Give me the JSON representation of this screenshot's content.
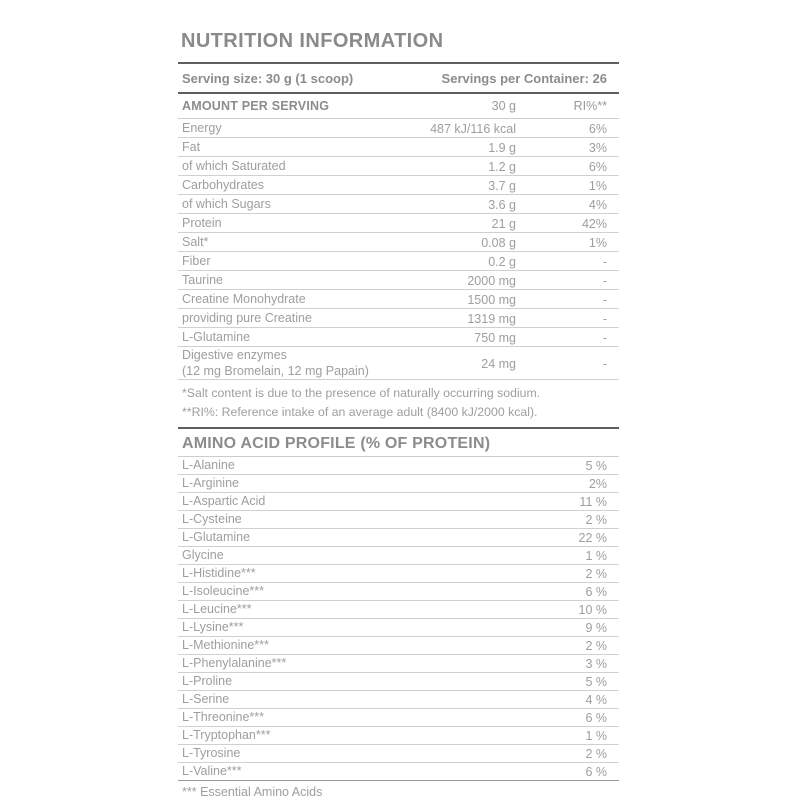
{
  "title": "NUTRITION INFORMATION",
  "serving": {
    "size_label": "Serving size: 30 g (1 scoop)",
    "per_container_label": "Servings per Container: 26"
  },
  "main_table": {
    "header": {
      "name": "AMOUNT PER SERVING",
      "amount": "30 g",
      "ri": "RI%**"
    },
    "rows": [
      {
        "name": "Energy",
        "amount": "487 kJ/116 kcal",
        "ri": "6%"
      },
      {
        "name": "Fat",
        "amount": "1.9 g",
        "ri": "3%"
      },
      {
        "name": "of which Saturated",
        "amount": "1.2 g",
        "ri": "6%"
      },
      {
        "name": "Carbohydrates",
        "amount": "3.7 g",
        "ri": "1%"
      },
      {
        "name": "of which Sugars",
        "amount": "3.6 g",
        "ri": "4%"
      },
      {
        "name": "Protein",
        "amount": "21 g",
        "ri": "42%"
      },
      {
        "name": "Salt*",
        "amount": "0.08 g",
        "ri": "1%"
      },
      {
        "name": "Fiber",
        "amount": "0.2 g",
        "ri": "-"
      },
      {
        "name": "Taurine",
        "amount": "2000 mg",
        "ri": "-"
      },
      {
        "name": "Creatine Monohydrate",
        "amount": "1500 mg",
        "ri": "-"
      },
      {
        "name": "providing pure Creatine",
        "amount": "1319 mg",
        "ri": "-"
      },
      {
        "name": "L-Glutamine",
        "amount": "750 mg",
        "ri": "-"
      },
      {
        "name": "Digestive enzymes",
        "name_line2": "(12 mg Bromelain, 12 mg Papain)",
        "amount": "24 mg",
        "ri": "-"
      }
    ],
    "footnotes": [
      "*Salt content is due to the presence of naturally occurring sodium.",
      "**RI%: Reference intake of an average adult (8400 kJ/2000 kcal)."
    ]
  },
  "amino_table": {
    "header": "AMINO ACID PROFILE (% OF PROTEIN)",
    "rows": [
      {
        "name": "L-Alanine",
        "value": "5 %"
      },
      {
        "name": "L-Arginine",
        "value": "2%"
      },
      {
        "name": "L-Aspartic Acid",
        "value": "11 %"
      },
      {
        "name": "L-Cysteine",
        "value": "2 %"
      },
      {
        "name": "L-Glutamine",
        "value": "22 %"
      },
      {
        "name": "Glycine",
        "value": "1 %"
      },
      {
        "name": "L-Histidine***",
        "value": "2 %"
      },
      {
        "name": "L-Isoleucine***",
        "value": "6 %"
      },
      {
        "name": "L-Leucine***",
        "value": "10 %"
      },
      {
        "name": "L-Lysine***",
        "value": "9 %"
      },
      {
        "name": "L-Methionine***",
        "value": "2 %"
      },
      {
        "name": "L-Phenylalanine***",
        "value": "3 %"
      },
      {
        "name": "L-Proline",
        "value": "5 %"
      },
      {
        "name": "L-Serine",
        "value": "4 %"
      },
      {
        "name": "L-Threonine***",
        "value": "6 %"
      },
      {
        "name": "L-Tryptophan***",
        "value": "1 %"
      },
      {
        "name": "L-Tyrosine",
        "value": "2 %"
      },
      {
        "name": "L-Valine***",
        "value": "6 %"
      }
    ],
    "footer": "*** Essential Amino Acids"
  },
  "colors": {
    "text_body": "#9e9e9e",
    "text_heading": "#8a8a8a",
    "rule_thick": "#5f5f5f",
    "rule_thin": "#d0d0d0",
    "background": "#ffffff"
  }
}
